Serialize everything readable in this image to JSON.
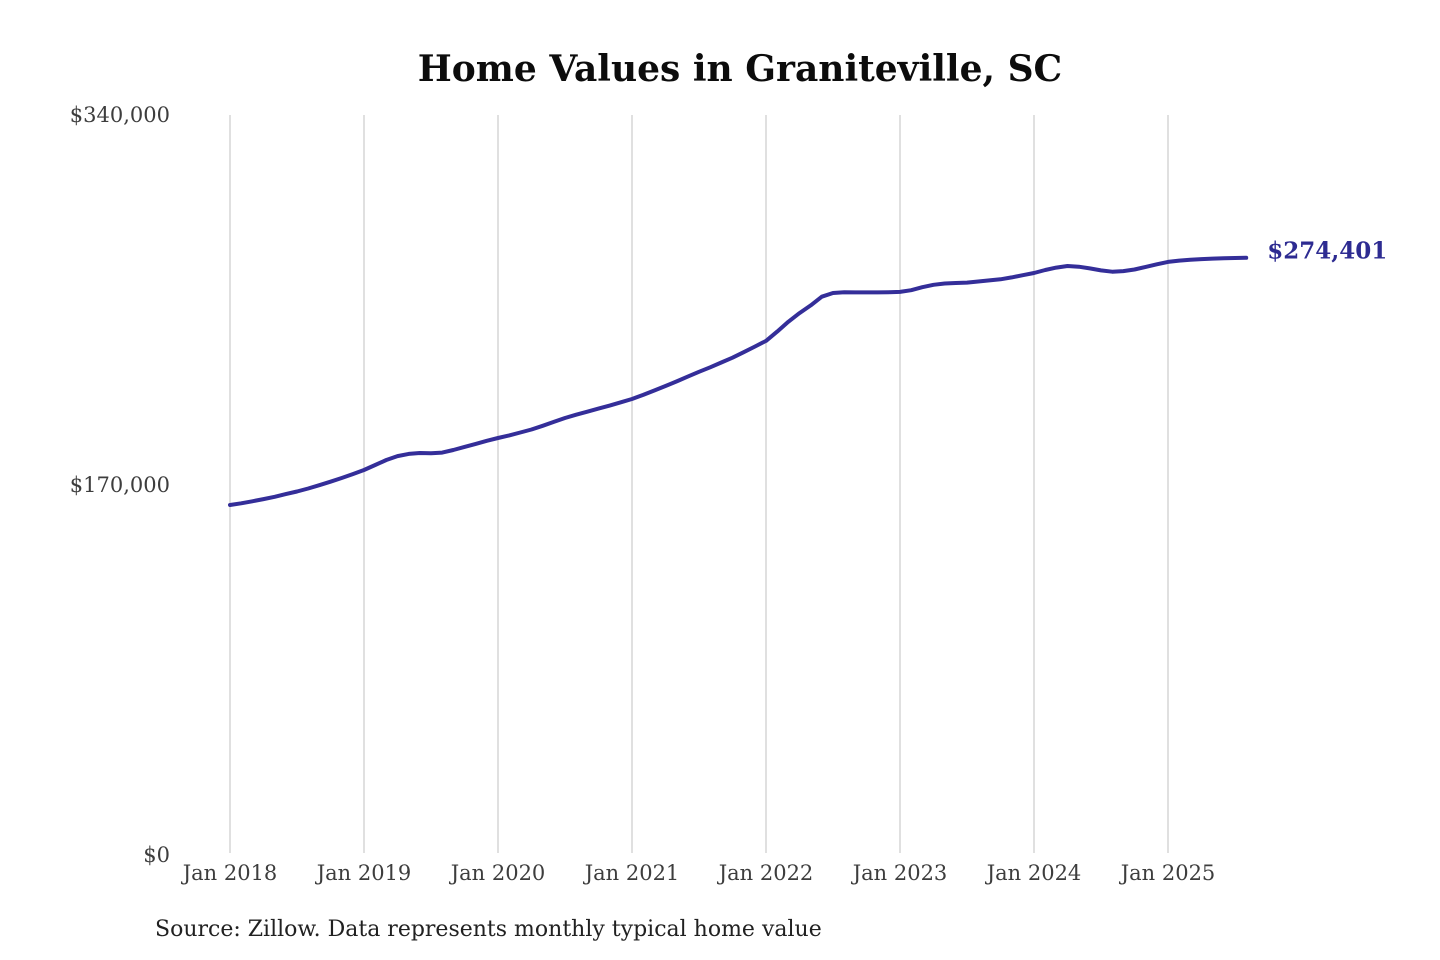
{
  "chart": {
    "title": "Home Values in Graniteville, SC",
    "source_note": "Source: Zillow. Data represents monthly typical home value",
    "end_label": "$274,401"
  },
  "colors": {
    "background": "#ffffff",
    "line": "#342e99",
    "annotation": "#2d2b91",
    "gridline": "#cccccc",
    "tick_label": "#3d3d3d",
    "title": "#0c0c0c",
    "source": "#212121"
  },
  "chart_data": {
    "type": "line",
    "title": "Home Values in Graniteville, SC",
    "series_name": "Monthly typical home value (Zillow)",
    "x_start": "Jan 2018",
    "x_end": "Aug 2025",
    "x_frequency": "monthly",
    "x_tick_labels": [
      "Jan 2018",
      "Jan 2019",
      "Jan 2020",
      "Jan 2021",
      "Jan 2022",
      "Jan 2023",
      "Jan 2024",
      "Jan 2025"
    ],
    "y_tick_labels": [
      "$0",
      "$170,000",
      "$340,000"
    ],
    "y_tick_values": [
      0,
      170000,
      340000
    ],
    "ylim": [
      0,
      340000
    ],
    "grid": "vertical-only",
    "legend": "none",
    "annotation": {
      "text": "$274,401",
      "at": "last-point"
    },
    "final_value": 274401,
    "values": [
      160800,
      161600,
      162500,
      163500,
      164600,
      165800,
      167000,
      168400,
      169900,
      171500,
      173200,
      175000,
      176900,
      179200,
      181500,
      183300,
      184300,
      184700,
      184600,
      184900,
      186100,
      187500,
      188900,
      190300,
      191600,
      192800,
      194100,
      195500,
      197200,
      199000,
      200800,
      202300,
      203700,
      205100,
      206500,
      208000,
      209500,
      211400,
      213400,
      215500,
      217600,
      219800,
      222000,
      224100,
      226300,
      228500,
      231000,
      233600,
      236200,
      240500,
      245000,
      249000,
      252500,
      256500,
      258200,
      258600,
      258500,
      258500,
      258500,
      258600,
      258700,
      259500,
      260900,
      262000,
      262600,
      262800,
      263000,
      263500,
      264000,
      264500,
      265400,
      266400,
      267400,
      268800,
      269900,
      270600,
      270300,
      269500,
      268600,
      268000,
      268300,
      269000,
      270200,
      271400,
      272500,
      273100,
      273500,
      273800,
      274000,
      274200,
      274300,
      274401
    ]
  }
}
